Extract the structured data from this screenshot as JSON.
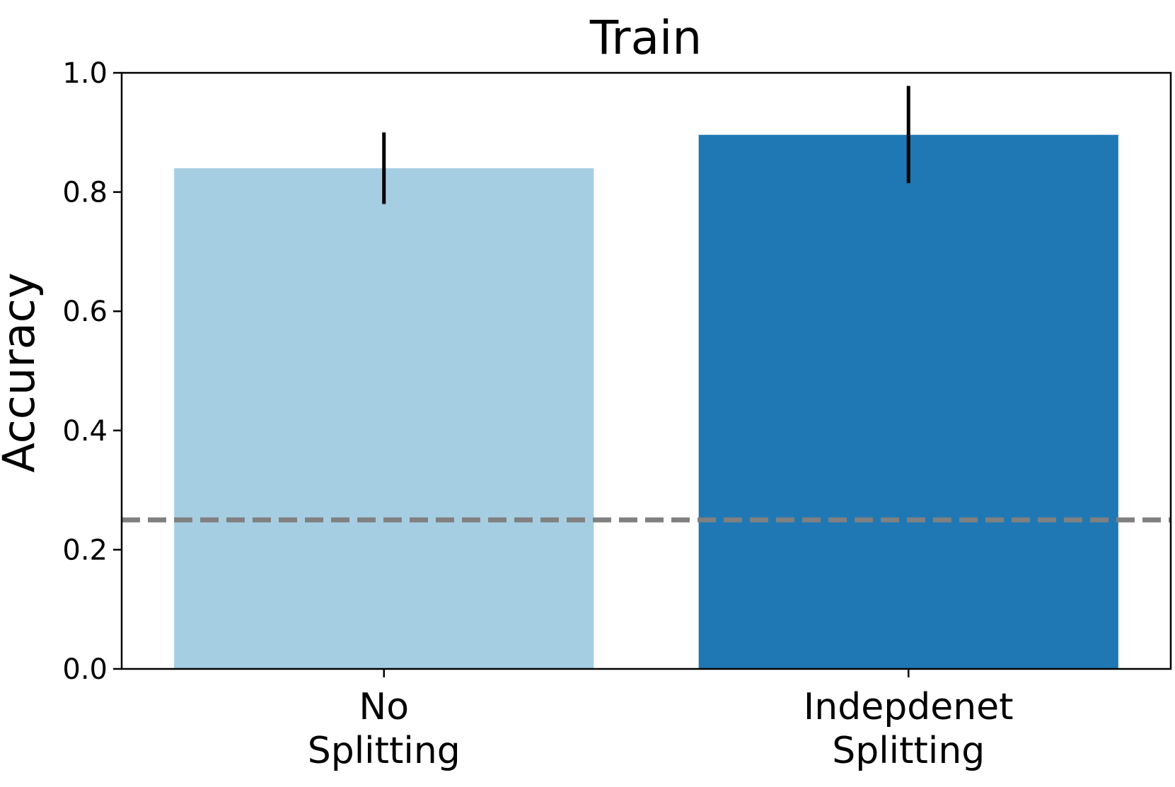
{
  "chart_data": {
    "type": "bar",
    "title": "Train",
    "xlabel": "",
    "ylabel": "Accuracy",
    "ylim": [
      0,
      1.0
    ],
    "yticks": [
      0.0,
      0.2,
      0.4,
      0.6,
      0.8,
      1.0
    ],
    "ytick_labels": [
      "0.0",
      "0.2",
      "0.4",
      "0.6",
      "0.8",
      "1.0"
    ],
    "grid": false,
    "categories": [
      {
        "lines": [
          "No",
          "Splitting"
        ]
      },
      {
        "lines": [
          "Indepdenet",
          "Splitting"
        ]
      }
    ],
    "values": [
      0.84,
      0.896
    ],
    "error_low": [
      0.78,
      0.815
    ],
    "error_high": [
      0.9,
      0.978
    ],
    "colors": [
      "#a6cee3",
      "#1f78b4"
    ],
    "reference_line": {
      "y": 0.25,
      "style": "dashed",
      "color": "#808080"
    }
  }
}
